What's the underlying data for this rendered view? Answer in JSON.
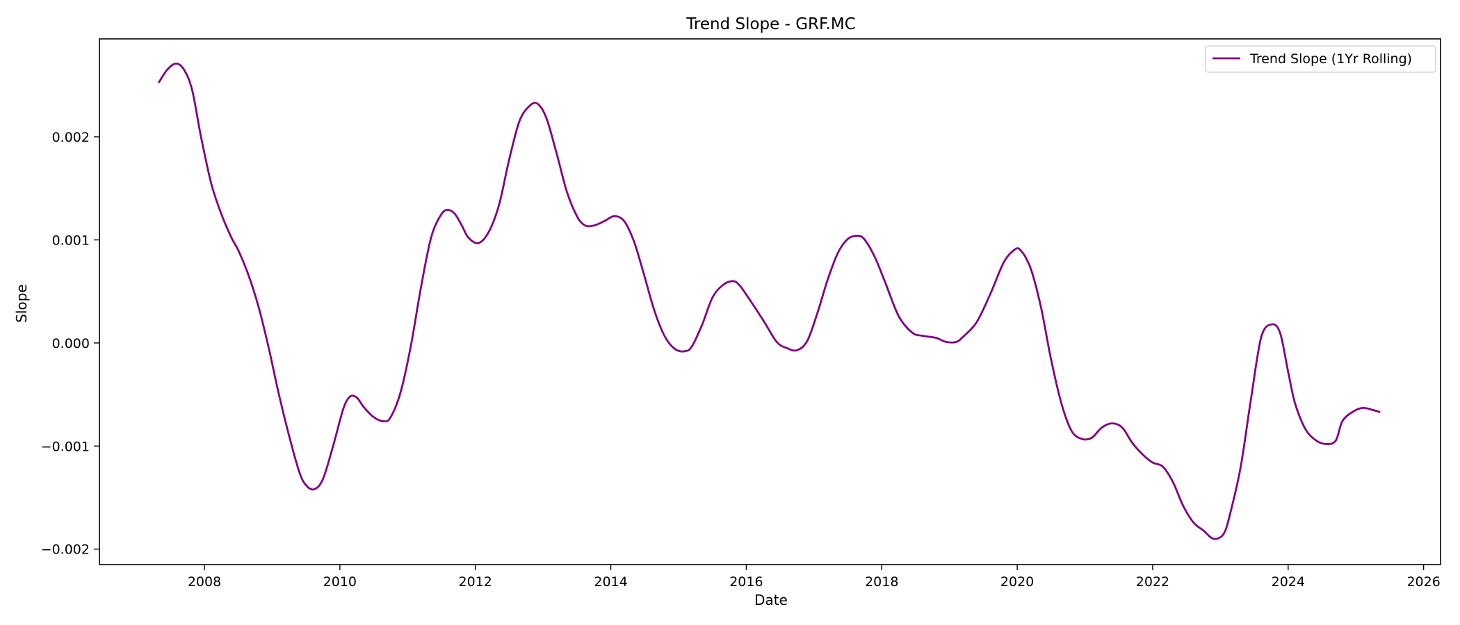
{
  "chart_data": {
    "type": "line",
    "title": "Trend Slope - GRF.MC",
    "xlabel": "Date",
    "ylabel": "Slope",
    "xlim": [
      2006.45,
      2026.25
    ],
    "ylim": [
      -0.00215,
      0.00295
    ],
    "x_ticks": [
      2008,
      2010,
      2012,
      2014,
      2016,
      2018,
      2020,
      2022,
      2024,
      2026
    ],
    "x_tick_labels": [
      "2008",
      "2010",
      "2012",
      "2014",
      "2016",
      "2018",
      "2020",
      "2022",
      "2024",
      "2026"
    ],
    "y_ticks": [
      -0.002,
      -0.001,
      0.0,
      0.001,
      0.002
    ],
    "y_tick_labels": [
      "−0.002",
      "−0.001",
      "0.000",
      "0.001",
      "0.002"
    ],
    "grid": false,
    "legend_position": "top-right",
    "color": "#800080",
    "series": [
      {
        "name": "Trend Slope (1Yr Rolling)",
        "color": "#800080",
        "x": [
          2007.33,
          2007.45,
          2007.58,
          2007.7,
          2007.82,
          2007.95,
          2008.1,
          2008.25,
          2008.4,
          2008.5,
          2008.65,
          2008.8,
          2008.95,
          2009.1,
          2009.25,
          2009.4,
          2009.5,
          2009.62,
          2009.75,
          2009.9,
          2010.05,
          2010.15,
          2010.25,
          2010.35,
          2010.5,
          2010.65,
          2010.75,
          2010.9,
          2011.05,
          2011.2,
          2011.35,
          2011.5,
          2011.6,
          2011.7,
          2011.8,
          2011.9,
          2012.05,
          2012.2,
          2012.35,
          2012.5,
          2012.65,
          2012.8,
          2012.92,
          2013.05,
          2013.2,
          2013.35,
          2013.5,
          2013.62,
          2013.75,
          2013.9,
          2014.05,
          2014.2,
          2014.35,
          2014.5,
          2014.65,
          2014.8,
          2014.95,
          2015.1,
          2015.2,
          2015.35,
          2015.5,
          2015.65,
          2015.8,
          2015.9,
          2016.05,
          2016.25,
          2016.45,
          2016.6,
          2016.75,
          2016.9,
          2017.05,
          2017.2,
          2017.35,
          2017.5,
          2017.65,
          2017.75,
          2017.9,
          2018.05,
          2018.25,
          2018.45,
          2018.6,
          2018.8,
          2018.95,
          2019.1,
          2019.2,
          2019.4,
          2019.6,
          2019.8,
          2019.95,
          2020.05,
          2020.2,
          2020.35,
          2020.5,
          2020.65,
          2020.8,
          2020.95,
          2021.1,
          2021.25,
          2021.4,
          2021.55,
          2021.7,
          2021.85,
          2022.0,
          2022.15,
          2022.3,
          2022.45,
          2022.6,
          2022.75,
          2022.9,
          2023.05,
          2023.15,
          2023.3,
          2023.45,
          2023.6,
          2023.75,
          2023.88,
          2024.0,
          2024.1,
          2024.25,
          2024.4,
          2024.55,
          2024.7,
          2024.8,
          2024.95,
          2025.1,
          2025.25,
          2025.35
        ],
        "y": [
          0.00253,
          0.00265,
          0.00271,
          0.00265,
          0.00245,
          0.002,
          0.00155,
          0.00125,
          0.00102,
          0.0009,
          0.00066,
          0.00035,
          -5e-05,
          -0.0005,
          -0.0009,
          -0.00125,
          -0.00138,
          -0.00142,
          -0.00132,
          -0.001,
          -0.00064,
          -0.00052,
          -0.00053,
          -0.00062,
          -0.00072,
          -0.00076,
          -0.00072,
          -0.00047,
          -2e-05,
          0.00055,
          0.00103,
          0.00125,
          0.00129,
          0.00125,
          0.00114,
          0.00102,
          0.00097,
          0.00108,
          0.00134,
          0.00178,
          0.00215,
          0.0023,
          0.00232,
          0.00218,
          0.00184,
          0.00147,
          0.00123,
          0.00114,
          0.00114,
          0.00118,
          0.00123,
          0.00118,
          0.00097,
          0.00064,
          0.0003,
          6e-05,
          -6e-05,
          -8e-05,
          -3e-05,
          0.00018,
          0.00044,
          0.00056,
          0.0006,
          0.00056,
          0.00042,
          0.00022,
          1e-05,
          -5e-05,
          -7e-05,
          2e-05,
          0.00029,
          0.00061,
          0.00087,
          0.00101,
          0.00104,
          0.001,
          0.00083,
          0.00059,
          0.00026,
          0.0001,
          7e-05,
          5e-05,
          1e-05,
          1e-05,
          6e-05,
          0.0002,
          0.00047,
          0.00078,
          0.0009,
          0.0009,
          0.00072,
          0.00035,
          -0.00016,
          -0.00058,
          -0.00085,
          -0.00093,
          -0.00092,
          -0.00082,
          -0.00078,
          -0.00082,
          -0.00097,
          -0.00108,
          -0.00116,
          -0.0012,
          -0.00135,
          -0.00158,
          -0.00174,
          -0.00182,
          -0.0019,
          -0.00185,
          -0.00164,
          -0.0012,
          -0.00055,
          5e-05,
          0.00018,
          0.0001,
          -0.00028,
          -0.00058,
          -0.00083,
          -0.00094,
          -0.00098,
          -0.00095,
          -0.00076,
          -0.00067,
          -0.00063,
          -0.00065,
          -0.00067
        ]
      }
    ]
  }
}
